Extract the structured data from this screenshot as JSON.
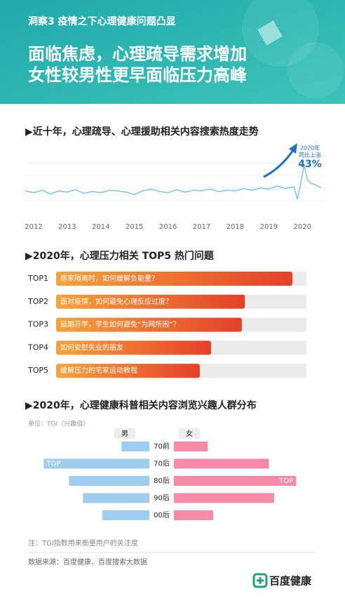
{
  "header": {
    "subtitle": "洞察3  疫情之下心理健康问题凸显",
    "title_lines": [
      "面临焦虑，心理疏导需求增加",
      "女性较男性更早面临压力高峰"
    ]
  },
  "chart_data": [
    {
      "type": "line",
      "title": "▶近十年，心理疏导、心理援助相关内容搜索热度走势",
      "color": "#7cc2ea",
      "x": [
        2011.75,
        2012.0,
        2012.25,
        2012.5,
        2012.75,
        2013.0,
        2013.25,
        2013.5,
        2013.75,
        2014.0,
        2014.25,
        2014.5,
        2014.75,
        2015.0,
        2015.25,
        2015.5,
        2015.75,
        2016.0,
        2016.25,
        2016.5,
        2016.75,
        2017.0,
        2017.25,
        2017.5,
        2017.75,
        2018.0,
        2018.25,
        2018.5,
        2018.75,
        2019.0,
        2019.25,
        2019.5,
        2019.75,
        2019.85,
        2019.95,
        2020.05,
        2020.15,
        2020.25,
        2020.4,
        2020.55
      ],
      "values": [
        33,
        30,
        34,
        28,
        33,
        31,
        35,
        29,
        32,
        30,
        34,
        33,
        31,
        27,
        33,
        36,
        32,
        30,
        35,
        31,
        34,
        33,
        36,
        32,
        34,
        33,
        37,
        34,
        38,
        36,
        41,
        37,
        40,
        19,
        45,
        77,
        52,
        46,
        43,
        38
      ],
      "xlim": [
        2011.75,
        2020.6
      ],
      "xticks": [
        2012,
        2013,
        2014,
        2015,
        2016,
        2017,
        2018,
        2019,
        2020
      ],
      "ylim": [
        0,
        100
      ],
      "annotation": [
        "2020年",
        "同比上涨",
        "43%"
      ]
    },
    {
      "type": "bar",
      "title": "▶2020年，心理压力相关 TOP5 热门问题",
      "color": "#ec6a2c",
      "categories": [
        "TOP1",
        "TOP2",
        "TOP3",
        "TOP4",
        "TOP5"
      ],
      "labels": [
        "居家隔离时，如何缓解负能量？",
        "面对疫情，如何避免心理反应过度？",
        "延期开学，学生如何避免“为网所困”？",
        "如何安慰失业的朋友",
        "缓解压力的宅家运动教程"
      ],
      "values": [
        94.4,
        75.4,
        74.2,
        61.9,
        57.4
      ],
      "xlim": [
        0,
        100
      ]
    },
    {
      "type": "butterfly",
      "title": "▶2020年，心理健康科普相关内容浏览兴趣人群分布",
      "unit": "单位：TGI（兴趣值）",
      "categories": [
        "70前",
        "70后",
        "80后",
        "90后",
        "00后"
      ],
      "xlim": [
        0,
        190
      ],
      "highlight_label": "TOP",
      "series": [
        {
          "name": "男",
          "color": "#9fcdf0",
          "values": [
            42,
            159,
            121,
            100,
            71
          ],
          "highlight": "70后"
        },
        {
          "name": "女",
          "color": "#f68aa8",
          "values": [
            51,
            143,
            184,
            151,
            59
          ],
          "highlight": "80后"
        }
      ]
    }
  ],
  "footer": {
    "note": "注：TGI指数用来衡量用户的关注度",
    "source": "数据来源：百度健康、百度搜索大数据",
    "logo": "百度健康"
  }
}
